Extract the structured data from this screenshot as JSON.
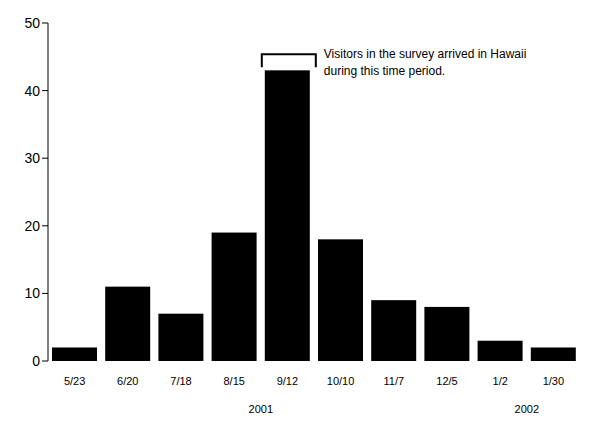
{
  "chart_data": {
    "type": "bar",
    "categories": [
      "5/23",
      "6/20",
      "7/18",
      "8/15",
      "9/12",
      "10/10",
      "11/7",
      "12/5",
      "1/2",
      "1/30"
    ],
    "values": [
      2,
      11,
      7,
      19,
      43,
      18,
      9,
      8,
      3,
      2
    ],
    "color": "#000000",
    "ylim": [
      0,
      50
    ],
    "yticks": [
      0,
      10,
      20,
      30,
      40,
      50
    ],
    "grid": false,
    "annotation": {
      "category": "9/12",
      "lines": [
        "Visitors in the survey arrived in Hawaii",
        "during this time period."
      ]
    },
    "year_labels": [
      {
        "label": "2001",
        "categories": [
          "8/15",
          "9/12"
        ]
      },
      {
        "label": "2002",
        "categories": [
          "1/2",
          "1/30"
        ]
      }
    ]
  }
}
